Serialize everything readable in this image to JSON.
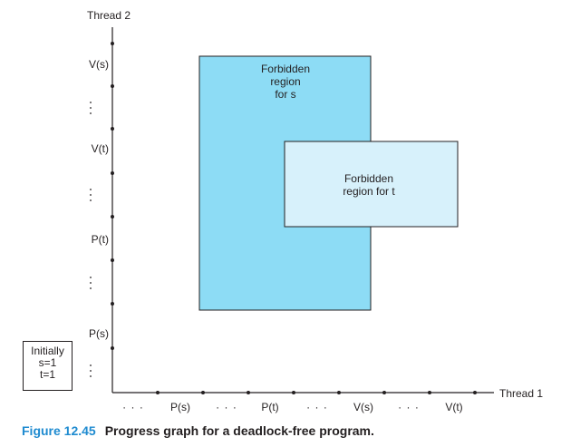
{
  "axes": {
    "x_label": "Thread 1",
    "y_label": "Thread 2",
    "x_ticks": [
      "P(s)",
      "P(t)",
      "V(s)",
      "V(t)"
    ],
    "y_ticks": [
      "V(s)",
      "V(t)",
      "P(t)",
      "P(s)"
    ],
    "ellipsis": "· · ·"
  },
  "regions": {
    "s": {
      "line1": "Forbidden",
      "line2": "region",
      "line3": "for s",
      "color": "#8ddcf5"
    },
    "t": {
      "line1": "Forbidden",
      "line2": "region for t",
      "color": "#d7f1fb"
    }
  },
  "initial": {
    "title": "Initially",
    "s": "s=1",
    "t": "t=1"
  },
  "caption": {
    "number": "Figure 12.45",
    "text": "Progress graph for a deadlock-free program."
  }
}
